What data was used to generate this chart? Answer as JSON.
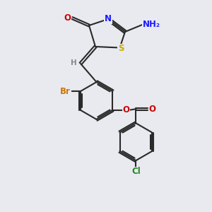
{
  "bg_color": "#e8eaf0",
  "line_color": "#2a2a2a",
  "bond_width": 1.5,
  "atom_colors": {
    "O": "#cc0000",
    "N": "#1a1aff",
    "S": "#ccaa00",
    "Br": "#cc7700",
    "Cl": "#228822",
    "H": "#888888",
    "C": "#2a2a2a"
  },
  "font_size": 8.5,
  "fig_size": [
    3.0,
    3.0
  ],
  "dpi": 100
}
